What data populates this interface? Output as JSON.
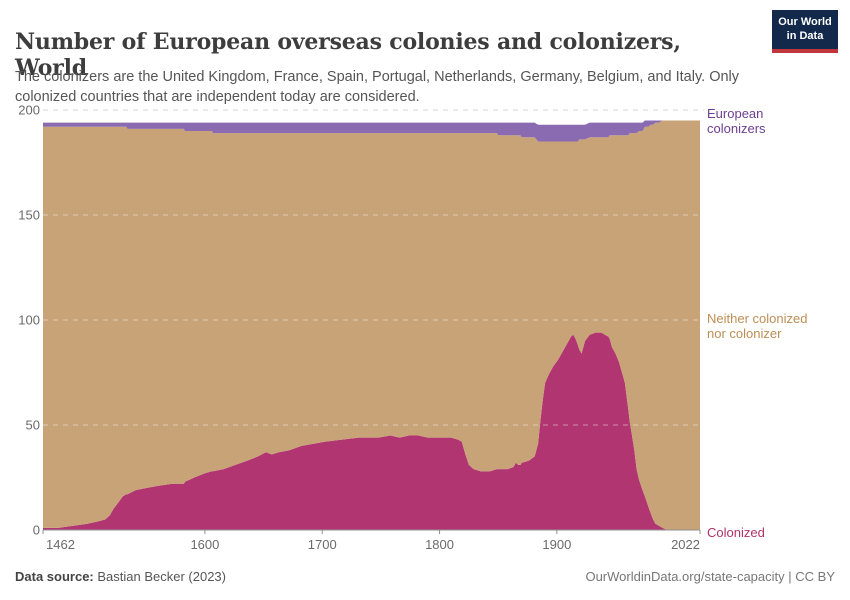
{
  "header": {
    "title": "Number of European overseas colonies and colonizers, World",
    "subtitle": "The colonizers are the United Kingdom, France, Spain, Portugal, Netherlands, Germany, Belgium, and Italy. Only colonized countries that are independent today are considered.",
    "logo": {
      "line1": "Our World",
      "line2": "in Data",
      "bg_color": "#13294b",
      "accent_color": "#c0363c"
    }
  },
  "chart_data": {
    "type": "area",
    "stacked": true,
    "title": "Number of European overseas colonies and colonizers, World",
    "xlabel": "",
    "ylabel": "",
    "x_range": [
      1462,
      2022
    ],
    "y_range": [
      0,
      200
    ],
    "x_ticks": [
      1462,
      1600,
      1700,
      1800,
      1900,
      2022
    ],
    "y_ticks": [
      0,
      50,
      100,
      150,
      200
    ],
    "grid": "dashed-horizontal",
    "legend_position": "right-edge-labels",
    "years": [
      1462,
      1475,
      1488,
      1500,
      1508,
      1515,
      1519,
      1522,
      1526,
      1530,
      1533,
      1534,
      1541,
      1550,
      1560,
      1572,
      1582,
      1583,
      1591,
      1600,
      1606,
      1607,
      1616,
      1626,
      1636,
      1645,
      1652,
      1657,
      1663,
      1672,
      1682,
      1692,
      1702,
      1716,
      1731,
      1748,
      1758,
      1766,
      1774,
      1782,
      1790,
      1800,
      1810,
      1816,
      1819,
      1822,
      1825,
      1829,
      1835,
      1843,
      1849,
      1850,
      1858,
      1863,
      1865,
      1867,
      1869,
      1870,
      1876,
      1881,
      1884,
      1886,
      1888,
      1890,
      1893,
      1897,
      1901,
      1905,
      1909,
      1912,
      1914,
      1916,
      1918,
      1919,
      1921,
      1924,
      1928,
      1933,
      1938,
      1941,
      1944,
      1945,
      1947,
      1950,
      1953,
      1956,
      1958,
      1960,
      1961,
      1962,
      1964,
      1966,
      1968,
      1970,
      1973,
      1975,
      1978,
      1980,
      1982,
      1984,
      1987,
      1990,
      1994,
      2005,
      2022
    ],
    "series": [
      {
        "name": "Colonized",
        "color": "#b13571",
        "values": [
          1,
          1,
          2,
          3,
          4,
          5,
          7,
          10,
          13,
          16,
          17,
          17,
          19,
          20,
          21,
          22,
          22,
          23,
          25,
          27,
          28,
          28,
          29,
          31,
          33,
          35,
          37,
          36,
          37,
          38,
          40,
          41,
          42,
          43,
          44,
          44,
          45,
          44,
          45,
          45,
          44,
          44,
          44,
          43,
          42,
          36,
          31,
          29,
          28,
          28,
          29,
          29,
          29,
          30,
          32,
          31,
          31,
          32,
          33,
          35,
          41,
          52,
          62,
          70,
          74,
          78,
          81,
          85,
          89,
          92,
          93,
          91,
          88,
          86,
          84,
          90,
          93,
          94,
          94,
          93,
          92,
          91,
          87,
          84,
          80,
          74,
          70,
          61,
          57,
          52,
          45,
          38,
          29,
          24,
          19,
          16,
          11,
          8,
          5,
          3,
          2,
          1,
          0,
          0,
          0
        ]
      },
      {
        "name": "Neither colonized nor colonizer",
        "color": "#c8a377",
        "values": [
          191,
          191,
          190,
          189,
          188,
          187,
          185,
          182,
          179,
          176,
          175,
          174,
          172,
          171,
          170,
          169,
          169,
          167,
          165,
          163,
          162,
          161,
          160,
          158,
          156,
          154,
          152,
          153,
          152,
          151,
          149,
          148,
          147,
          146,
          145,
          145,
          144,
          145,
          144,
          144,
          145,
          145,
          145,
          146,
          147,
          153,
          158,
          160,
          161,
          161,
          160,
          159,
          159,
          158,
          156,
          157,
          157,
          155,
          154,
          152,
          144,
          133,
          123,
          115,
          111,
          107,
          104,
          100,
          96,
          93,
          92,
          94,
          97,
          100,
          102,
          96,
          94,
          93,
          93,
          94,
          95,
          97,
          101,
          104,
          108,
          114,
          118,
          127,
          131,
          137,
          144,
          151,
          160,
          166,
          171,
          176,
          181,
          185,
          188,
          191,
          192,
          194,
          195,
          195,
          195
        ]
      },
      {
        "name": "European colonizers",
        "color": "#8a6bb1",
        "values": [
          2,
          2,
          2,
          2,
          2,
          2,
          2,
          2,
          2,
          2,
          2,
          3,
          3,
          3,
          3,
          3,
          3,
          4,
          4,
          4,
          4,
          5,
          5,
          5,
          5,
          5,
          5,
          5,
          5,
          5,
          5,
          5,
          5,
          5,
          5,
          5,
          5,
          5,
          5,
          5,
          5,
          5,
          5,
          5,
          5,
          5,
          5,
          5,
          5,
          5,
          5,
          6,
          6,
          6,
          6,
          6,
          6,
          7,
          7,
          7,
          8,
          8,
          8,
          8,
          8,
          8,
          8,
          8,
          8,
          8,
          8,
          8,
          8,
          7,
          7,
          7,
          7,
          7,
          7,
          7,
          7,
          6,
          6,
          6,
          6,
          6,
          6,
          6,
          6,
          5,
          5,
          5,
          5,
          4,
          4,
          3,
          3,
          2,
          2,
          1,
          1,
          0,
          0,
          0,
          0
        ]
      }
    ]
  },
  "side_labels": [
    {
      "text": "European\ncolonizers",
      "color": "#6d3e91"
    },
    {
      "text": "Neither colonized\nnor colonizer",
      "color": "#be8e55"
    },
    {
      "text": "Colonized",
      "color": "#b13366"
    }
  ],
  "footer": {
    "data_source_label": "Data source:",
    "data_source_value": " Bastian Becker (2023)",
    "link": "OurWorldinData.org/state-capacity",
    "license": " | CC BY"
  }
}
